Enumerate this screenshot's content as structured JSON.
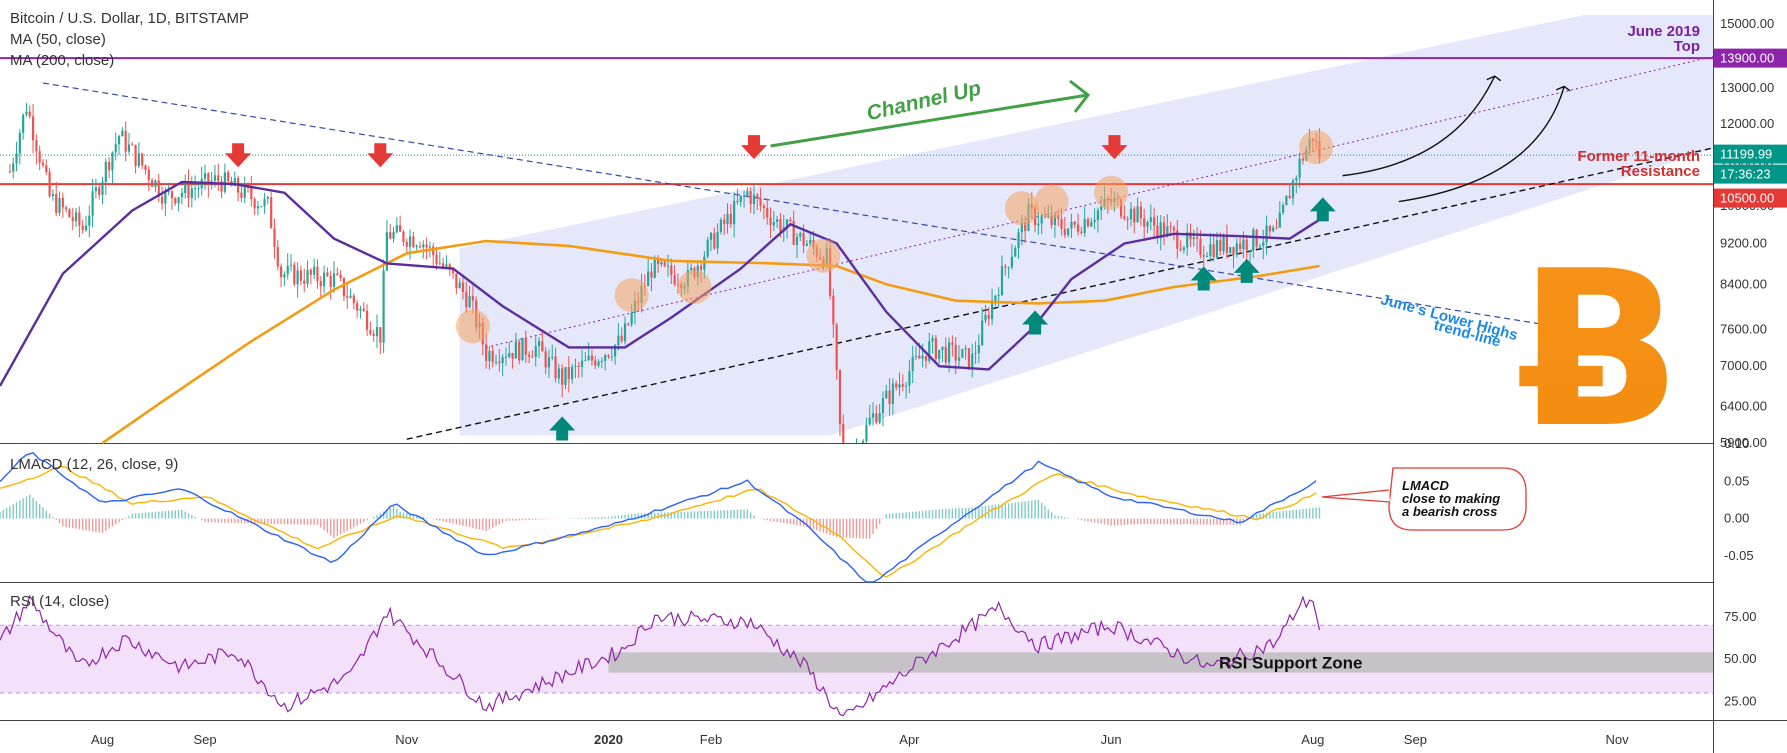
{
  "header": {
    "symbol_line": "Bitcoin / U.S. Dollar, 1D, BITSTAMP",
    "ma50_label": "MA (50, close)",
    "ma200_label": "MA (200, close)"
  },
  "colors": {
    "up_candle": "#26a69a",
    "down_candle": "#ef5350",
    "ma50": "#5b2d9e",
    "ma200": "#f39c12",
    "channel_fill": "#cfd3f7",
    "resistance_red": "#e53935",
    "top_purple": "#8e24aa",
    "green_arrow": "#00897b",
    "red_arrow": "#e53935",
    "channel_up_green": "#43a047",
    "lower_highs_blue": "#1e88e5",
    "bitcoin_orange": "#f7931a",
    "macd_line": "#2962ff",
    "signal_line": "#ffb300",
    "rsi_line": "#8e24aa",
    "rsi_band": "#f3e0fa",
    "support_zone": "#bdbdbd"
  },
  "chart_data": [
    {
      "type": "candlestick",
      "panel": "price",
      "ylim": [
        5900,
        15300
      ],
      "y_ticks": [
        "15000.00",
        "14000.00",
        "13000.00",
        "12000.00",
        "11000.00",
        "10000.00",
        "9200.00",
        "8400.00",
        "7600.00",
        "7000.00",
        "6400.00",
        "5900.00"
      ],
      "x_labels": [
        "Aug",
        "Sep",
        "Nov",
        "2020",
        "Feb",
        "Apr",
        "Jun",
        "Aug",
        "Sep",
        "Nov"
      ],
      "price_tags": [
        {
          "value": "13900.00",
          "color": "#8e24aa"
        },
        {
          "value": "11199.99",
          "color": "#009688"
        },
        {
          "value": "17:36:23",
          "color": "#009688"
        },
        {
          "value": "10500.00",
          "color": "#e53935"
        }
      ],
      "levels": {
        "june_2019_top": 13900,
        "former_resistance": 10500,
        "current_price": 11199.99
      },
      "ma50_label": "MA (50, close)",
      "ma200_label": "MA (200, close)",
      "price_path": [
        {
          "d": "2019-07-04",
          "v": 10800
        },
        {
          "d": "2019-07-09",
          "v": 12500
        },
        {
          "d": "2019-07-16",
          "v": 10200
        },
        {
          "d": "2019-07-26",
          "v": 9500
        },
        {
          "d": "2019-08-06",
          "v": 11700
        },
        {
          "d": "2019-08-20",
          "v": 10200
        },
        {
          "d": "2019-09-05",
          "v": 10600
        },
        {
          "d": "2019-09-20",
          "v": 10000
        },
        {
          "d": "2019-09-24",
          "v": 8600
        },
        {
          "d": "2019-10-10",
          "v": 8500
        },
        {
          "d": "2019-10-24",
          "v": 7500
        },
        {
          "d": "2019-10-26",
          "v": 9400
        },
        {
          "d": "2019-11-05",
          "v": 9300
        },
        {
          "d": "2019-11-20",
          "v": 8100
        },
        {
          "d": "2019-11-25",
          "v": 7200
        },
        {
          "d": "2019-12-10",
          "v": 7300
        },
        {
          "d": "2019-12-18",
          "v": 6800
        },
        {
          "d": "2020-01-05",
          "v": 7400
        },
        {
          "d": "2020-01-14",
          "v": 8700
        },
        {
          "d": "2020-01-25",
          "v": 8500
        },
        {
          "d": "2020-02-12",
          "v": 10300
        },
        {
          "d": "2020-02-20",
          "v": 9700
        },
        {
          "d": "2020-03-07",
          "v": 8900
        },
        {
          "d": "2020-03-12",
          "v": 5400
        },
        {
          "d": "2020-03-20",
          "v": 6200
        },
        {
          "d": "2020-04-07",
          "v": 7300
        },
        {
          "d": "2020-04-20",
          "v": 7100
        },
        {
          "d": "2020-05-01",
          "v": 8900
        },
        {
          "d": "2020-05-07",
          "v": 9800
        },
        {
          "d": "2020-05-20",
          "v": 9500
        },
        {
          "d": "2020-06-01",
          "v": 10100
        },
        {
          "d": "2020-06-16",
          "v": 9500
        },
        {
          "d": "2020-06-27",
          "v": 9100
        },
        {
          "d": "2020-07-10",
          "v": 9200
        },
        {
          "d": "2020-07-21",
          "v": 9400
        },
        {
          "d": "2020-07-28",
          "v": 11000
        },
        {
          "d": "2020-08-01",
          "v": 11700
        },
        {
          "d": "2020-08-03",
          "v": 11200
        }
      ],
      "annotations": {
        "channel": "Channel Up",
        "june_top": [
          "June 2019",
          "Top"
        ],
        "resistance": [
          "Former 11-month",
          "Resistance"
        ],
        "lower_highs": [
          "June's Lower Highs",
          "trend-line"
        ]
      }
    },
    {
      "type": "line",
      "panel": "lmacd",
      "title": "LMACD (12, 26, close, 9)",
      "ylim": [
        -0.085,
        0.1
      ],
      "y_ticks": [
        "0.10",
        "0.05",
        "0.00",
        "-0.05"
      ],
      "callout": [
        "LMACD",
        "close to making",
        "a bearish cross"
      ],
      "series": [
        {
          "values_path": [
            {
              "d": "2019-07-01",
              "v": 0.05
            },
            {
              "d": "2019-07-10",
              "v": 0.09
            },
            {
              "d": "2019-08-01",
              "v": 0.02
            },
            {
              "d": "2019-08-25",
              "v": 0.04
            },
            {
              "d": "2019-09-26",
              "v": -0.03
            },
            {
              "d": "2019-10-10",
              "v": -0.06
            },
            {
              "d": "2019-10-28",
              "v": 0.02
            },
            {
              "d": "2019-11-25",
              "v": -0.05
            },
            {
              "d": "2020-01-01",
              "v": -0.01
            },
            {
              "d": "2020-02-12",
              "v": 0.05
            },
            {
              "d": "2020-03-01",
              "v": -0.01
            },
            {
              "d": "2020-03-20",
              "v": -0.09
            },
            {
              "d": "2020-04-10",
              "v": -0.02
            },
            {
              "d": "2020-05-10",
              "v": 0.075
            },
            {
              "d": "2020-06-01",
              "v": 0.03
            },
            {
              "d": "2020-07-10",
              "v": -0.005
            },
            {
              "d": "2020-08-03",
              "v": 0.052
            }
          ]
        },
        {
          "values_path": [
            {
              "d": "2019-07-01",
              "v": 0.04
            },
            {
              "d": "2019-07-20",
              "v": 0.07
            },
            {
              "d": "2019-08-10",
              "v": 0.02
            },
            {
              "d": "2019-09-01",
              "v": 0.03
            },
            {
              "d": "2019-10-05",
              "v": -0.04
            },
            {
              "d": "2019-10-30",
              "v": 0.005
            },
            {
              "d": "2019-12-01",
              "v": -0.04
            },
            {
              "d": "2020-01-10",
              "v": -0.005
            },
            {
              "d": "2020-02-15",
              "v": 0.04
            },
            {
              "d": "2020-03-10",
              "v": -0.02
            },
            {
              "d": "2020-03-25",
              "v": -0.08
            },
            {
              "d": "2020-04-20",
              "v": -0.005
            },
            {
              "d": "2020-05-15",
              "v": 0.06
            },
            {
              "d": "2020-06-10",
              "v": 0.03
            },
            {
              "d": "2020-07-15",
              "v": 0.0
            },
            {
              "d": "2020-08-03",
              "v": 0.035
            }
          ]
        }
      ]
    },
    {
      "type": "line",
      "panel": "rsi",
      "title": "RSI (14, close)",
      "ylim": [
        14,
        95
      ],
      "y_ticks": [
        "75.00",
        "50.00",
        "25.00"
      ],
      "band": [
        30,
        70
      ],
      "support_zone_label": "RSI Support Zone",
      "support_zone": {
        "from": "2020-01-01",
        "to": "2020-11-30",
        "low": 42,
        "high": 54
      },
      "values_path": [
        {
          "d": "2019-07-01",
          "v": 60
        },
        {
          "d": "2019-07-10",
          "v": 85
        },
        {
          "d": "2019-07-25",
          "v": 45
        },
        {
          "d": "2019-08-08",
          "v": 62
        },
        {
          "d": "2019-08-25",
          "v": 45
        },
        {
          "d": "2019-09-10",
          "v": 55
        },
        {
          "d": "2019-09-25",
          "v": 22
        },
        {
          "d": "2019-10-15",
          "v": 40
        },
        {
          "d": "2019-10-26",
          "v": 78
        },
        {
          "d": "2019-11-10",
          "v": 50
        },
        {
          "d": "2019-11-25",
          "v": 22
        },
        {
          "d": "2019-12-15",
          "v": 38
        },
        {
          "d": "2020-01-05",
          "v": 55
        },
        {
          "d": "2020-01-15",
          "v": 75
        },
        {
          "d": "2020-02-13",
          "v": 72
        },
        {
          "d": "2020-03-01",
          "v": 45
        },
        {
          "d": "2020-03-12",
          "v": 14
        },
        {
          "d": "2020-04-05",
          "v": 50
        },
        {
          "d": "2020-04-28",
          "v": 80
        },
        {
          "d": "2020-05-10",
          "v": 58
        },
        {
          "d": "2020-06-01",
          "v": 70
        },
        {
          "d": "2020-07-01",
          "v": 45
        },
        {
          "d": "2020-07-21",
          "v": 60
        },
        {
          "d": "2020-07-28",
          "v": 82
        },
        {
          "d": "2020-08-01",
          "v": 86
        },
        {
          "d": "2020-08-03",
          "v": 67
        }
      ]
    }
  ]
}
